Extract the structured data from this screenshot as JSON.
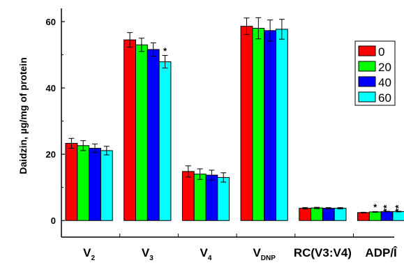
{
  "chart_data": {
    "type": "bar",
    "title": "",
    "xlabel": "",
    "ylabel": "Daidzin, µg/mg of protein",
    "ylim": [
      -5,
      64
    ],
    "yticks": [
      0,
      20,
      40,
      60
    ],
    "grid": false,
    "legend_position": "right",
    "categories": [
      {
        "main": "V",
        "sub": "2"
      },
      {
        "main": "V",
        "sub": "3"
      },
      {
        "main": "V",
        "sub": "4"
      },
      {
        "main": "V",
        "sub": "DNP"
      },
      {
        "main": "RC(V3:V4)",
        "sub": ""
      },
      {
        "main": "ADP/Î",
        "sub": ""
      }
    ],
    "series": [
      {
        "name": "0",
        "color": "#ff0000",
        "values": [
          23.3,
          54.5,
          14.8,
          58.6,
          3.7,
          2.4
        ],
        "errors": [
          1.5,
          2.2,
          1.7,
          2.5,
          0.2,
          0.1
        ],
        "marks": [
          "",
          "",
          "",
          "",
          "",
          ""
        ]
      },
      {
        "name": "20",
        "color": "#00ff00",
        "values": [
          22.6,
          53.0,
          14.0,
          58.0,
          3.8,
          2.6
        ],
        "errors": [
          1.5,
          2.0,
          1.6,
          3.2,
          0.2,
          0.1
        ],
        "marks": [
          "",
          "",
          "",
          "",
          "",
          "*"
        ]
      },
      {
        "name": "40",
        "color": "#0000ff",
        "values": [
          21.8,
          51.6,
          13.7,
          57.3,
          3.7,
          2.7
        ],
        "errors": [
          1.3,
          2.0,
          1.5,
          3.2,
          0.2,
          0.1
        ],
        "marks": [
          "",
          "",
          "",
          "",
          "",
          "**"
        ]
      },
      {
        "name": "60",
        "color": "#00ffff",
        "values": [
          21.1,
          47.9,
          13.0,
          57.7,
          3.7,
          2.7
        ],
        "errors": [
          1.3,
          1.9,
          1.4,
          3.0,
          0.2,
          0.1
        ],
        "marks": [
          "",
          "*",
          "",
          "",
          "",
          "**"
        ]
      }
    ]
  }
}
